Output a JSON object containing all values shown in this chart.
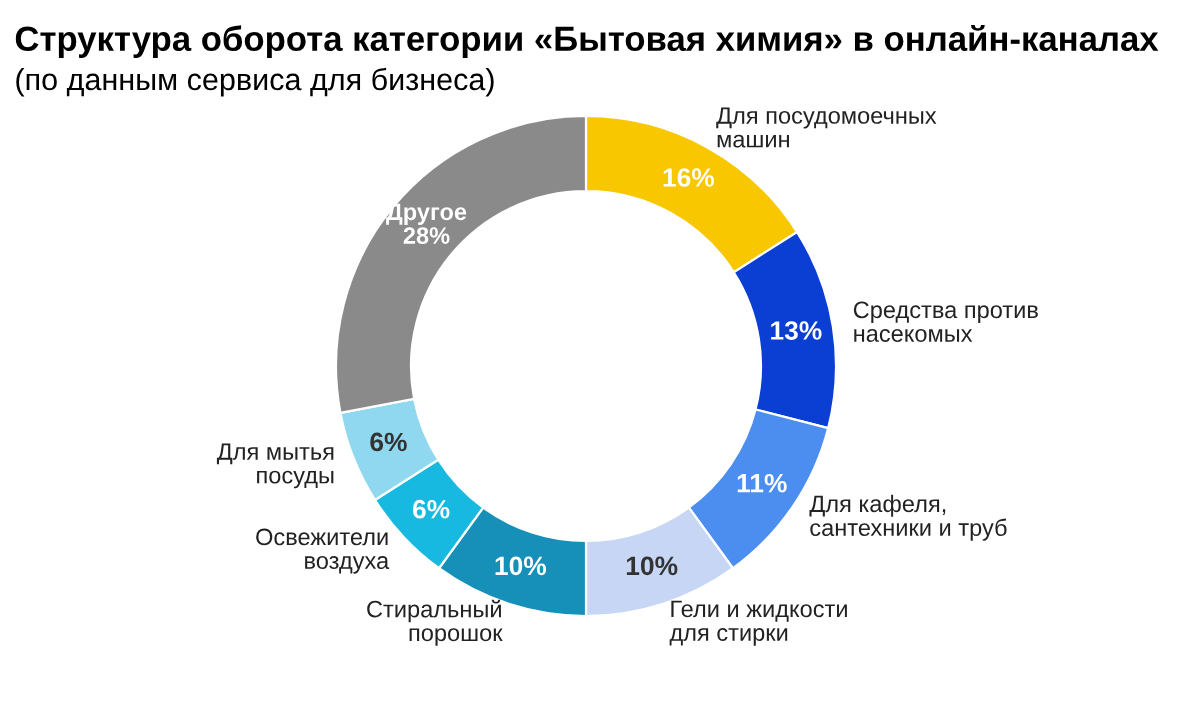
{
  "chart_data": {
    "type": "donut",
    "title": "Структура оборота категории «Бытовая химия» в онлайн-каналах",
    "subtitle": "(по данным сервиса для бизнеса)",
    "categories": [
      "Для посудомоечных\nмашин",
      "Средства против\nнасекомых",
      "Для кафеля,\nсантехники и труб",
      "Гели и жидкости\nдля стирки",
      "Стиральный\nпорошок",
      "Освежители\nвоздуха",
      "Для мытья\nпосуды",
      "Другое"
    ],
    "values": [
      16,
      13,
      11,
      10,
      10,
      6,
      6,
      28
    ],
    "value_labels": [
      "16%",
      "13%",
      "11%",
      "10%",
      "10%",
      "6%",
      "6%",
      "28%"
    ],
    "colors": [
      "#f8c700",
      "#0b3fd4",
      "#4b8ef0",
      "#c8d6f6",
      "#1690b8",
      "#18b9e0",
      "#8fd8ef",
      "#8a8a8a"
    ],
    "legend": false
  }
}
